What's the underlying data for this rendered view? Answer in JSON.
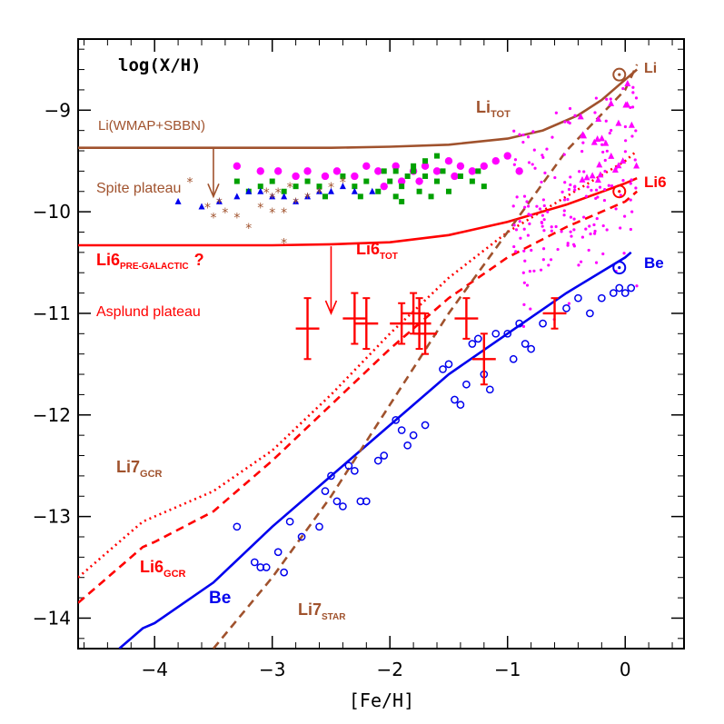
{
  "chart_data": {
    "type": "line",
    "ylabel": "log(X/H)",
    "xlabel": "[Fe/H]",
    "xlim": [
      -4.65,
      0.5
    ],
    "ylim": [
      -14.3,
      -8.3
    ],
    "xticks": [
      -4,
      -3,
      -2,
      -1,
      0
    ],
    "xtick_labels": [
      "−4",
      "−3",
      "−2",
      "−1",
      "0"
    ],
    "yticks": [
      -9,
      -10,
      -11,
      -12,
      -13,
      -14
    ],
    "ytick_labels": [
      "−9",
      "−10",
      "−11",
      "−12",
      "−13",
      "−14"
    ],
    "colors": {
      "li": "#a0522d",
      "li6": "#ff0000",
      "be": "#0000ee",
      "magenta": "#ff00ff",
      "green": "#00a000"
    },
    "series": [
      {
        "name": "Li_TOT",
        "style": "solid",
        "color": "#a0522d",
        "x": [
          -4.65,
          -3.5,
          -3.0,
          -2.5,
          -2.0,
          -1.5,
          -1.0,
          -0.7,
          -0.4,
          -0.2,
          0.0,
          0.1
        ],
        "y": [
          -9.37,
          -9.37,
          -9.37,
          -9.37,
          -9.36,
          -9.34,
          -9.28,
          -9.2,
          -9.05,
          -8.9,
          -8.7,
          -8.6
        ]
      },
      {
        "name": "Li6_TOT",
        "style": "solid",
        "color": "#ff0000",
        "x": [
          -4.65,
          -3.0,
          -2.5,
          -2.0,
          -1.5,
          -1.0,
          -0.5,
          0.0,
          0.1
        ],
        "y": [
          -10.33,
          -10.33,
          -10.32,
          -10.3,
          -10.23,
          -10.1,
          -9.93,
          -9.72,
          -9.67
        ]
      },
      {
        "name": "Li7_GCR",
        "style": "dotted",
        "color": "#ff0000",
        "x": [
          -4.65,
          -4.1,
          -4.0,
          -3.5,
          -3.0,
          -2.5,
          -2.0,
          -1.5,
          -1.0,
          -0.5,
          0.0,
          0.1
        ],
        "y": [
          -13.6,
          -13.05,
          -13.0,
          -12.75,
          -12.35,
          -11.8,
          -11.2,
          -10.65,
          -10.2,
          -9.85,
          -9.5,
          -9.4
        ]
      },
      {
        "name": "Li6_GCR",
        "style": "dashed",
        "color": "#ff0000",
        "x": [
          -4.65,
          -4.1,
          -4.0,
          -3.5,
          -3.0,
          -2.5,
          -2.0,
          -1.5,
          -1.0,
          -0.5,
          0.0,
          0.1
        ],
        "y": [
          -13.85,
          -13.3,
          -13.25,
          -12.95,
          -12.45,
          -11.9,
          -11.35,
          -10.85,
          -10.45,
          -10.15,
          -9.9,
          -9.8
        ]
      },
      {
        "name": "Be",
        "style": "solid",
        "color": "#0000ee",
        "x": [
          -4.3,
          -4.1,
          -4.0,
          -3.5,
          -3.0,
          -2.5,
          -2.0,
          -1.5,
          -1.0,
          -0.5,
          0.0,
          0.05
        ],
        "y": [
          -14.3,
          -14.1,
          -14.05,
          -13.65,
          -13.1,
          -12.6,
          -12.1,
          -11.6,
          -11.2,
          -10.8,
          -10.45,
          -10.4
        ]
      },
      {
        "name": "Li7_STAR",
        "style": "dashed",
        "color": "#a0522d",
        "x": [
          -3.5,
          -3.0,
          -2.5,
          -2.0,
          -1.5,
          -1.0,
          -0.5,
          0.0,
          0.1
        ],
        "y": [
          -14.3,
          -13.6,
          -12.8,
          -11.9,
          -11.0,
          -10.2,
          -9.4,
          -8.8,
          -8.55
        ]
      }
    ],
    "scatter": {
      "stars_li": [
        [
          -3.7,
          -9.7
        ],
        [
          -3.55,
          -9.95
        ],
        [
          -3.5,
          -10.05
        ],
        [
          -3.45,
          -9.9
        ],
        [
          -3.4,
          -10.0
        ],
        [
          -3.3,
          -10.05
        ],
        [
          -3.2,
          -10.15
        ],
        [
          -3.1,
          -9.95
        ],
        [
          -3.05,
          -9.8
        ],
        [
          -3.0,
          -9.85
        ],
        [
          -3.0,
          -10.0
        ],
        [
          -2.95,
          -9.8
        ],
        [
          -2.9,
          -10.0
        ],
        [
          -2.9,
          -10.3
        ],
        [
          -2.85,
          -9.75
        ],
        [
          -2.8,
          -9.9
        ],
        [
          -2.7,
          -9.85
        ],
        [
          -2.6,
          -9.8
        ],
        [
          -2.5,
          -9.75
        ],
        [
          -2.4,
          -9.7
        ]
      ],
      "triangles_be": [
        [
          -3.8,
          -9.9
        ],
        [
          -3.6,
          -9.95
        ],
        [
          -3.45,
          -9.9
        ],
        [
          -3.3,
          -9.85
        ],
        [
          -3.2,
          -9.8
        ],
        [
          -3.1,
          -9.8
        ],
        [
          -3.0,
          -9.85
        ],
        [
          -2.9,
          -9.85
        ],
        [
          -2.8,
          -9.9
        ],
        [
          -2.7,
          -9.85
        ],
        [
          -2.6,
          -9.8
        ],
        [
          -2.5,
          -9.8
        ],
        [
          -2.4,
          -9.75
        ],
        [
          -2.3,
          -9.8
        ],
        [
          -2.15,
          -9.8
        ]
      ],
      "squares_green": [
        [
          -3.3,
          -9.7
        ],
        [
          -3.2,
          -9.8
        ],
        [
          -3.1,
          -9.75
        ],
        [
          -3.0,
          -9.7
        ],
        [
          -2.9,
          -9.8
        ],
        [
          -2.8,
          -9.75
        ],
        [
          -2.7,
          -9.7
        ],
        [
          -2.6,
          -9.75
        ],
        [
          -2.55,
          -9.85
        ],
        [
          -2.4,
          -9.65
        ],
        [
          -2.3,
          -9.75
        ],
        [
          -2.2,
          -9.7
        ],
        [
          -2.1,
          -9.8
        ],
        [
          -2.0,
          -9.7
        ],
        [
          -1.95,
          -9.85
        ],
        [
          -1.9,
          -9.75
        ],
        [
          -1.8,
          -9.6
        ],
        [
          -1.75,
          -9.8
        ],
        [
          -1.7,
          -9.65
        ],
        [
          -1.6,
          -9.7
        ],
        [
          -1.55,
          -9.6
        ],
        [
          -1.5,
          -9.8
        ],
        [
          -1.4,
          -9.65
        ],
        [
          -1.3,
          -9.7
        ],
        [
          -1.25,
          -9.6
        ],
        [
          -1.2,
          -9.75
        ],
        [
          -1.9,
          -9.9
        ],
        [
          -1.8,
          -9.55
        ],
        [
          -1.7,
          -9.5
        ],
        [
          -1.6,
          -9.45
        ],
        [
          -1.95,
          -9.6
        ],
        [
          -2.25,
          -9.85
        ],
        [
          -2.05,
          -9.6
        ],
        [
          -1.85,
          -9.65
        ],
        [
          -1.65,
          -9.85
        ]
      ],
      "circles_magenta": [
        [
          -3.3,
          -9.55
        ],
        [
          -3.1,
          -9.6
        ],
        [
          -2.95,
          -9.6
        ],
        [
          -2.8,
          -9.65
        ],
        [
          -2.7,
          -9.6
        ],
        [
          -2.55,
          -9.65
        ],
        [
          -2.45,
          -9.6
        ],
        [
          -2.3,
          -9.65
        ],
        [
          -2.2,
          -9.55
        ],
        [
          -2.1,
          -9.6
        ],
        [
          -1.95,
          -9.55
        ],
        [
          -1.8,
          -9.6
        ],
        [
          -1.7,
          -9.55
        ],
        [
          -1.6,
          -9.6
        ],
        [
          -1.5,
          -9.5
        ],
        [
          -1.4,
          -9.55
        ],
        [
          -1.3,
          -9.6
        ],
        [
          -1.2,
          -9.55
        ],
        [
          -1.1,
          -9.5
        ],
        [
          -1.9,
          -9.7
        ],
        [
          -2.05,
          -9.75
        ],
        [
          -1.75,
          -9.7
        ],
        [
          -1.45,
          -9.65
        ],
        [
          -1.0,
          -9.45
        ],
        [
          -0.9,
          -9.6
        ]
      ],
      "circles_be_open": [
        [
          -3.3,
          -13.1
        ],
        [
          -3.15,
          -13.45
        ],
        [
          -3.1,
          -13.5
        ],
        [
          -3.05,
          -13.5
        ],
        [
          -2.95,
          -13.35
        ],
        [
          -2.9,
          -13.55
        ],
        [
          -2.85,
          -13.05
        ],
        [
          -2.75,
          -13.2
        ],
        [
          -2.6,
          -13.1
        ],
        [
          -2.55,
          -12.75
        ],
        [
          -2.5,
          -12.6
        ],
        [
          -2.45,
          -12.85
        ],
        [
          -2.4,
          -12.9
        ],
        [
          -2.35,
          -12.5
        ],
        [
          -2.3,
          -12.55
        ],
        [
          -2.25,
          -12.85
        ],
        [
          -2.2,
          -12.85
        ],
        [
          -2.1,
          -12.45
        ],
        [
          -2.05,
          -12.4
        ],
        [
          -1.95,
          -12.05
        ],
        [
          -1.9,
          -12.15
        ],
        [
          -1.85,
          -12.3
        ],
        [
          -1.8,
          -12.2
        ],
        [
          -1.7,
          -12.1
        ],
        [
          -1.55,
          -11.55
        ],
        [
          -1.5,
          -11.5
        ],
        [
          -1.45,
          -11.85
        ],
        [
          -1.4,
          -11.9
        ],
        [
          -1.35,
          -11.7
        ],
        [
          -1.3,
          -11.3
        ],
        [
          -1.25,
          -11.25
        ],
        [
          -1.2,
          -11.6
        ],
        [
          -1.15,
          -11.75
        ],
        [
          -1.1,
          -11.2
        ],
        [
          -1.0,
          -11.2
        ],
        [
          -0.95,
          -11.45
        ],
        [
          -0.9,
          -11.1
        ],
        [
          -0.85,
          -11.3
        ],
        [
          -0.8,
          -11.35
        ],
        [
          -0.7,
          -11.1
        ],
        [
          -0.5,
          -10.95
        ],
        [
          -0.4,
          -10.85
        ],
        [
          -0.3,
          -11.0
        ],
        [
          -0.2,
          -10.85
        ],
        [
          -0.1,
          -10.8
        ],
        [
          -0.05,
          -10.75
        ],
        [
          0.0,
          -10.8
        ],
        [
          0.05,
          -10.75
        ]
      ],
      "crosses_li6": [
        {
          "x": -2.7,
          "y": -11.15,
          "xerr": 0.1,
          "yerr": 0.3
        },
        {
          "x": -2.3,
          "y": -11.05,
          "xerr": 0.1,
          "yerr": 0.25
        },
        {
          "x": -2.2,
          "y": -11.1,
          "xerr": 0.1,
          "yerr": 0.25
        },
        {
          "x": -1.9,
          "y": -11.1,
          "xerr": 0.1,
          "yerr": 0.2
        },
        {
          "x": -1.8,
          "y": -11.0,
          "xerr": 0.1,
          "yerr": 0.2
        },
        {
          "x": -1.75,
          "y": -11.1,
          "xerr": 0.1,
          "yerr": 0.25
        },
        {
          "x": -1.7,
          "y": -11.2,
          "xerr": 0.1,
          "yerr": 0.2
        },
        {
          "x": -1.35,
          "y": -11.05,
          "xerr": 0.1,
          "yerr": 0.2
        },
        {
          "x": -1.2,
          "y": -11.45,
          "xerr": 0.1,
          "yerr": 0.25
        },
        {
          "x": -0.6,
          "y": -11.0,
          "xerr": 0.1,
          "yerr": 0.15
        }
      ],
      "solar": [
        {
          "label": "Li",
          "x": -0.05,
          "y": -8.65,
          "color": "#a0522d"
        },
        {
          "label": "Li6",
          "x": -0.05,
          "y": -9.8,
          "color": "#ff0000"
        },
        {
          "label": "Be",
          "x": -0.05,
          "y": -10.55,
          "color": "#0000ee"
        }
      ]
    },
    "annotations": {
      "li_wmap": "Li(WMAP+SBBN)",
      "spite": "Spite plateau",
      "li6_pre_main": "Li6",
      "li6_pre_sub": "PRE-GALACTIC",
      "li6_pre_q": "?",
      "asplund": "Asplund plateau",
      "li_tot_main": "Li",
      "li_tot_sub": "TOT",
      "li6_tot_main": "Li6",
      "li6_tot_sub": "TOT",
      "li7_gcr_main": "Li7",
      "li7_gcr_sub": "GCR",
      "li6_gcr_main": "Li6",
      "li6_gcr_sub": "GCR",
      "be_curve": "Be",
      "li7_star_main": "Li7",
      "li7_star_sub": "STAR",
      "solar_li": "Li",
      "solar_li6": "Li6",
      "solar_be": "Be"
    }
  }
}
